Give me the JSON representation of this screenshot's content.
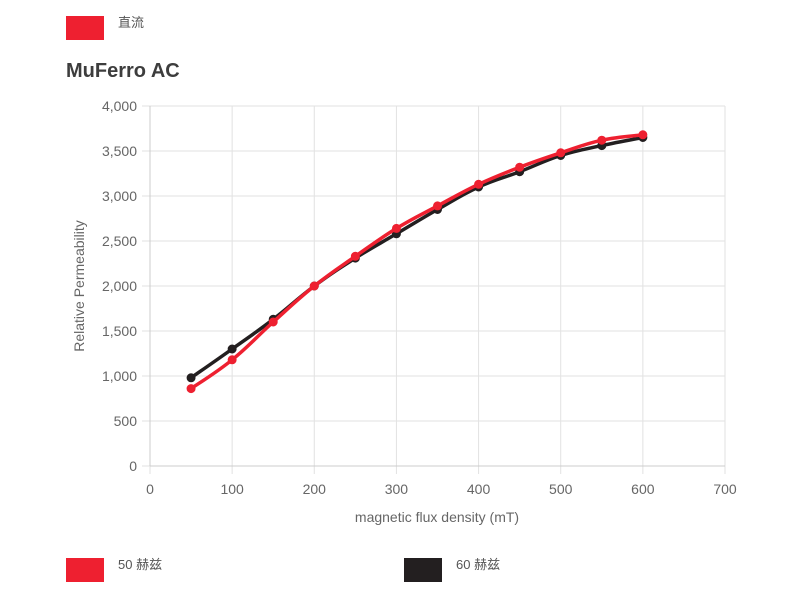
{
  "top_legend": {
    "label": "直流",
    "color": "#ee2030"
  },
  "chart_data": {
    "type": "line",
    "title": "MuFerro AC",
    "xlabel": "magnetic flux density (mT)",
    "ylabel": "Relative Permeability",
    "xlim": [
      0,
      700
    ],
    "ylim": [
      0,
      4000
    ],
    "x_ticks": [
      0,
      100,
      200,
      300,
      400,
      500,
      600,
      700
    ],
    "y_ticks": [
      0,
      500,
      1000,
      1500,
      2000,
      2500,
      3000,
      3500,
      4000
    ],
    "y_tick_labels": [
      "0",
      "500",
      "1,000",
      "1,500",
      "2,000",
      "2,500",
      "3,000",
      "3,500",
      "4,000"
    ],
    "grid": true,
    "legend_position": "bottom",
    "series": [
      {
        "name": "60 赫兹",
        "color": "#231f20",
        "x": [
          50,
          100,
          150,
          200,
          250,
          300,
          350,
          400,
          450,
          500,
          550,
          600
        ],
        "values": [
          980,
          1300,
          1630,
          2000,
          2310,
          2580,
          2850,
          3100,
          3270,
          3450,
          3560,
          3650
        ]
      },
      {
        "name": "50 赫兹",
        "color": "#ee2030",
        "x": [
          50,
          100,
          150,
          200,
          250,
          300,
          350,
          400,
          450,
          500,
          550,
          600
        ],
        "values": [
          860,
          1180,
          1600,
          2000,
          2330,
          2640,
          2890,
          3130,
          3320,
          3480,
          3620,
          3680
        ]
      }
    ]
  }
}
